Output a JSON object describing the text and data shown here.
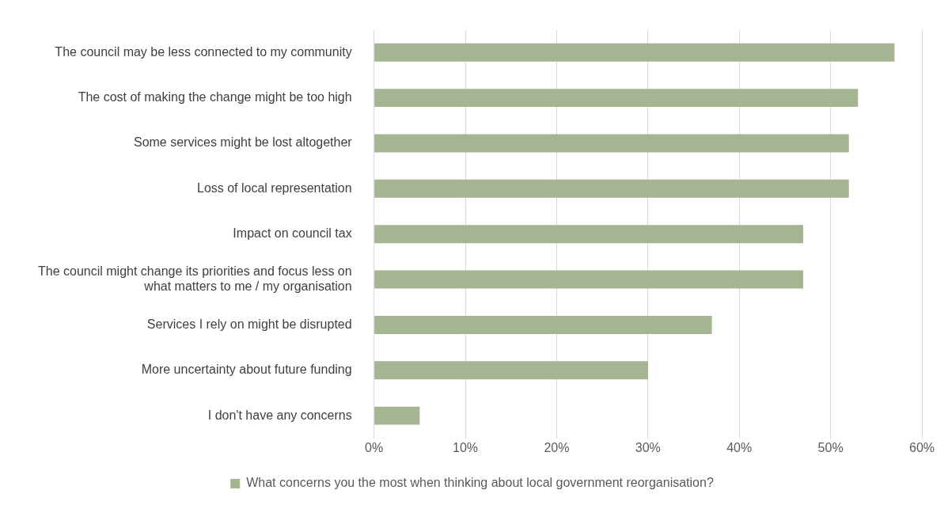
{
  "chart_data": {
    "type": "bar",
    "orientation": "horizontal",
    "categories": [
      "The council may be less connected to my community",
      "The cost of making the change might be too high",
      "Some services might be lost altogether",
      "Loss of local representation",
      "Impact on council tax",
      "The council might change its priorities and focus less on what matters to me / my organisation",
      "Services I rely on might be disrupted",
      "More uncertainty about future funding",
      "I don't have any concerns"
    ],
    "series": [
      {
        "name": "What concerns you the most when thinking about local government reorganisation?",
        "color": "#a5b592",
        "values": [
          57,
          53,
          52,
          52,
          47,
          47,
          37,
          30,
          5
        ]
      }
    ],
    "xlim": [
      0,
      60
    ],
    "xticks": [
      {
        "value": 0,
        "label": "0%"
      },
      {
        "value": 10,
        "label": "10%"
      },
      {
        "value": 20,
        "label": "20%"
      },
      {
        "value": 30,
        "label": "30%"
      },
      {
        "value": 40,
        "label": "40%"
      },
      {
        "value": 50,
        "label": "50%"
      },
      {
        "value": 60,
        "label": "60%"
      }
    ],
    "grid": "x",
    "legend": "bottom"
  }
}
